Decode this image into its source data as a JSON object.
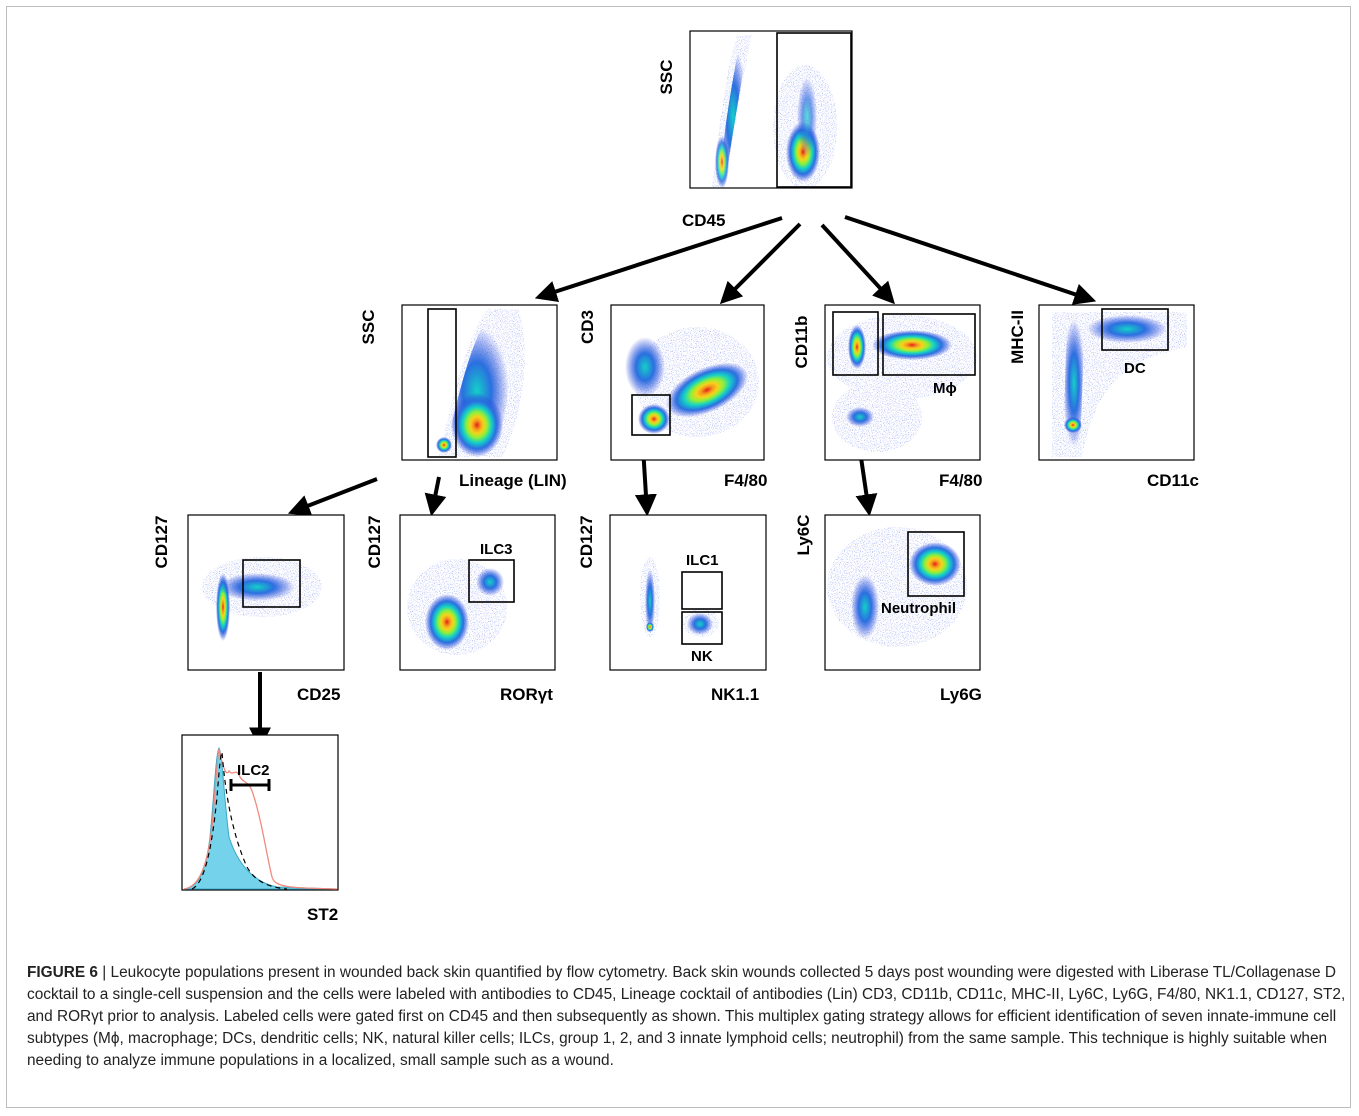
{
  "figure": {
    "caption_label": "FIGURE 6",
    "caption_text": " | Leukocyte populations present in wounded back skin quantified by flow cytometry. Back skin wounds collected 5 days post wounding were digested with Liberase TL/Collagenase D cocktail to a single-cell suspension and the cells were labeled with antibodies to CD45, Lineage cocktail of antibodies (Lin) CD3, CD11b, CD11c, MHC-II, Ly6C, Ly6G, F4/80, NK1.1, CD127, ST2, and RORγt prior to analysis. Labeled cells were gated first on CD45 and then subsequently as shown. This multiplex gating strategy allows for efficient identification of seven innate-immune cell subtypes (Mϕ, macrophage; DCs, dendritic cells; NK, natural killer cells; ILCs, group 1, 2, and 3 innate lymphoid cells; neutrophil) from the same sample. This technique is highly suitable when needing to analyze immune populations in a localized, small sample such as a wound."
  },
  "plots": {
    "cd45": {
      "y": "SSC",
      "x": "CD45"
    },
    "lin": {
      "y": "SSC",
      "x": "Lineage (LIN)"
    },
    "cd3": {
      "y": "CD3",
      "x": "F4/80"
    },
    "cd11b": {
      "y": "CD11b",
      "x": "F4/80",
      "gate": "Mϕ"
    },
    "mhc": {
      "y": "MHC-II",
      "x": "CD11c",
      "gate": "DC"
    },
    "cd25": {
      "y": "CD127",
      "x": "CD25"
    },
    "ror": {
      "y": "CD127",
      "x": "RORγt",
      "gate": "ILC3"
    },
    "nk": {
      "y": "CD127",
      "x": "NK1.1",
      "gate1": "ILC1",
      "gate2": "NK"
    },
    "ly6": {
      "y": "Ly6C",
      "x": "Ly6G",
      "gate": "Neutrophil"
    },
    "st2": {
      "x": "ST2",
      "gate": "ILC2"
    }
  },
  "colors": {
    "density_low": "#2b3fd9",
    "density_mid": "#13d0c8",
    "density_high": "#8ef03a",
    "density_peak": "#f7d21b",
    "density_core": "#e51d1d",
    "histogram_fill": "#74d3ea",
    "histogram_line": "#f08a7f"
  }
}
